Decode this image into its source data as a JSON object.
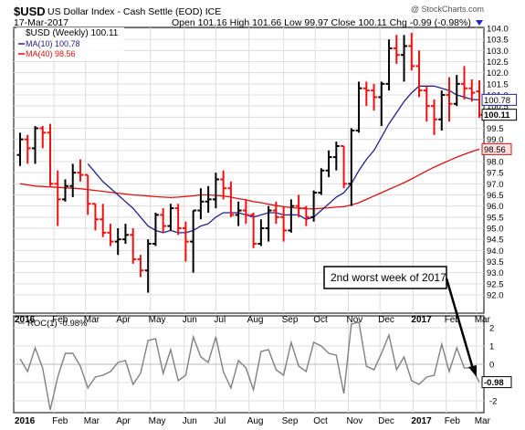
{
  "header": {
    "symbol": "$USD",
    "name": "US Dollar Index - Cash Settle (EOD) ICE",
    "watermark": "@ StockCharts.com",
    "date": "17-Mar-2017",
    "ohlc_text": "Open 101.16  High 101.66  Low 99.97  Close 100.11  Chg -0.99 (-0.98%)",
    "arrow_icon": "down-triangle-icon",
    "down_color": "#2222cc"
  },
  "legend": {
    "price": "$USD (Weekly) 100.11",
    "ma10": "MA(10) 100.78",
    "ma40": "MA(40) 98.56",
    "roc": "ROC(1) -0.98%"
  },
  "annotation": {
    "text": "2nd worst week of 2017"
  },
  "colors": {
    "up": "#000000",
    "down": "#ee1111",
    "ma10": "#22228a",
    "ma40": "#dd1111",
    "roc": "#808080"
  },
  "chart_data": [
    {
      "type": "ohlc",
      "title": "$USD (Weekly) 100.11",
      "ylim": [
        91.5,
        104.1
      ],
      "y_ticks": [
        92.0,
        92.5,
        93.0,
        93.5,
        94.0,
        94.5,
        95.0,
        95.5,
        96.0,
        96.5,
        97.0,
        97.5,
        98.0,
        98.5,
        99.0,
        99.5,
        100.0,
        100.5,
        101.0,
        101.5,
        102.0,
        102.5,
        103.0,
        103.5,
        104.0
      ],
      "x_labels": [
        {
          "label": "2016",
          "week": 0
        },
        {
          "label": "Feb",
          "week": 4.5
        },
        {
          "label": "Mar",
          "week": 8.7
        },
        {
          "label": "Apr",
          "week": 13
        },
        {
          "label": "May",
          "week": 17.3
        },
        {
          "label": "Jun",
          "week": 21.8
        },
        {
          "label": "Jul",
          "week": 26
        },
        {
          "label": "Aug",
          "week": 30.4
        },
        {
          "label": "Sep",
          "week": 35
        },
        {
          "label": "Oct",
          "week": 39.2
        },
        {
          "label": "Nov",
          "week": 43.6
        },
        {
          "label": "Dec",
          "week": 47.8
        },
        {
          "label": "2017",
          "week": 52.2
        },
        {
          "label": "Feb",
          "week": 56.6
        },
        {
          "label": "Mar",
          "week": 60.6
        }
      ],
      "last_labels": [
        {
          "text": "100.78",
          "value": 100.78,
          "bg": "#ffffff",
          "border": "#22228a"
        },
        {
          "text": "100.11",
          "value": 100.11,
          "bg": "#ffffff",
          "border": "#000000"
        },
        {
          "text": "98.56",
          "value": 98.56,
          "bg": "#ffe0e0",
          "border": "#dd1111"
        }
      ],
      "ohlc": [
        [
          98.3,
          99.3,
          97.8,
          99.0
        ],
        [
          99.0,
          99.2,
          97.9,
          98.6
        ],
        [
          98.6,
          99.6,
          97.9,
          99.5
        ],
        [
          99.5,
          99.6,
          98.6,
          99.3
        ],
        [
          99.3,
          99.7,
          96.9,
          97.0
        ],
        [
          97.0,
          97.6,
          95.1,
          96.3
        ],
        [
          96.3,
          97.2,
          96.2,
          96.9
        ],
        [
          96.9,
          97.9,
          96.4,
          97.5
        ],
        [
          97.5,
          98.1,
          97.1,
          97.4
        ],
        [
          97.4,
          97.4,
          95.6,
          96.1
        ],
        [
          96.1,
          96.1,
          94.9,
          95.4
        ],
        [
          95.4,
          96.1,
          94.6,
          94.8
        ],
        [
          94.8,
          95.2,
          94.2,
          94.4
        ],
        [
          94.4,
          95.0,
          93.8,
          94.5
        ],
        [
          94.5,
          95.2,
          94.3,
          94.7
        ],
        [
          94.7,
          95.0,
          93.4,
          93.6
        ],
        [
          93.6,
          93.8,
          92.8,
          93.1
        ],
        [
          93.1,
          94.5,
          92.1,
          94.3
        ],
        [
          94.3,
          95.7,
          94.2,
          95.6
        ],
        [
          95.6,
          95.9,
          94.8,
          95.1
        ],
        [
          95.1,
          96.1,
          94.9,
          95.9
        ],
        [
          95.9,
          96.1,
          94.7,
          95.0
        ],
        [
          95.0,
          95.3,
          93.5,
          94.4
        ],
        [
          94.4,
          95.8,
          93.0,
          95.8
        ],
        [
          95.8,
          96.8,
          95.4,
          96.2
        ],
        [
          96.2,
          96.9,
          95.7,
          96.3
        ],
        [
          96.3,
          97.5,
          95.9,
          97.2
        ],
        [
          97.2,
          97.6,
          96.3,
          96.8
        ],
        [
          96.8,
          97.1,
          95.5,
          95.6
        ],
        [
          95.6,
          96.2,
          95.1,
          95.8
        ],
        [
          95.8,
          96.3,
          95.2,
          95.6
        ],
        [
          95.6,
          95.7,
          94.1,
          94.3
        ],
        [
          94.3,
          95.4,
          94.2,
          95.0
        ],
        [
          95.0,
          96.0,
          94.4,
          95.8
        ],
        [
          95.8,
          96.2,
          95.2,
          95.5
        ],
        [
          95.5,
          96.0,
          94.4,
          94.9
        ],
        [
          94.9,
          96.3,
          94.8,
          96.0
        ],
        [
          96.0,
          96.5,
          95.5,
          95.9
        ],
        [
          95.9,
          96.0,
          95.1,
          95.5
        ],
        [
          95.5,
          96.7,
          95.3,
          96.6
        ],
        [
          96.6,
          97.7,
          96.5,
          97.6
        ],
        [
          97.6,
          98.5,
          97.3,
          98.2
        ],
        [
          98.2,
          98.9,
          97.6,
          98.7
        ],
        [
          98.7,
          98.7,
          96.8,
          97.0
        ],
        [
          97.0,
          99.5,
          96.0,
          99.4
        ],
        [
          99.4,
          101.6,
          99.3,
          101.3
        ],
        [
          101.3,
          101.6,
          100.5,
          101.2
        ],
        [
          101.2,
          101.5,
          100.3,
          100.9
        ],
        [
          100.9,
          101.6,
          99.6,
          101.5
        ],
        [
          101.5,
          103.5,
          101.2,
          103.1
        ],
        [
          103.1,
          103.7,
          102.4,
          102.8
        ],
        [
          102.8,
          103.7,
          101.6,
          103.2
        ],
        [
          103.2,
          103.8,
          102.1,
          102.3
        ],
        [
          102.3,
          103.0,
          100.9,
          101.2
        ],
        [
          101.2,
          101.4,
          99.8,
          100.5
        ],
        [
          100.5,
          100.8,
          99.2,
          99.9
        ],
        [
          99.9,
          101.2,
          99.4,
          101.0
        ],
        [
          101.0,
          101.8,
          99.8,
          100.6
        ],
        [
          100.6,
          101.9,
          100.5,
          101.5
        ],
        [
          101.5,
          102.3,
          100.8,
          101.3
        ],
        [
          101.3,
          101.7,
          100.7,
          101.1
        ],
        [
          101.16,
          101.66,
          99.97,
          100.11
        ]
      ],
      "series": [
        {
          "name": "MA(10) 100.78",
          "values": [
            null,
            null,
            null,
            null,
            null,
            null,
            null,
            null,
            null,
            97.9,
            97.5,
            97.1,
            96.8,
            96.5,
            96.2,
            95.9,
            95.5,
            95.1,
            94.9,
            94.8,
            94.9,
            94.8,
            94.8,
            94.9,
            95.1,
            95.2,
            95.5,
            95.7,
            95.7,
            95.7,
            95.6,
            95.5,
            95.6,
            95.7,
            95.7,
            95.6,
            95.6,
            95.6,
            95.4,
            95.5,
            95.8,
            96.1,
            96.4,
            96.6,
            97.0,
            97.6,
            98.1,
            98.5,
            99.1,
            99.7,
            100.2,
            100.7,
            101.1,
            101.4,
            101.4,
            101.4,
            101.3,
            101.2,
            101.0,
            100.9,
            100.8,
            100.78
          ]
        },
        {
          "name": "MA(40) 98.56",
          "values": [
            97.0,
            96.95,
            96.9,
            96.88,
            96.86,
            96.84,
            96.82,
            96.8,
            96.78,
            96.74,
            96.7,
            96.66,
            96.62,
            96.58,
            96.54,
            96.5,
            96.48,
            96.45,
            96.42,
            96.4,
            96.38,
            96.4,
            96.43,
            96.46,
            96.5,
            96.5,
            96.48,
            96.45,
            96.4,
            96.33,
            96.28,
            96.2,
            96.15,
            96.08,
            96.02,
            95.97,
            95.93,
            95.9,
            95.88,
            95.87,
            95.9,
            95.92,
            95.95,
            95.97,
            96.05,
            96.15,
            96.3,
            96.45,
            96.6,
            96.75,
            96.9,
            97.05,
            97.22,
            97.4,
            97.58,
            97.75,
            97.9,
            98.05,
            98.2,
            98.33,
            98.45,
            98.56
          ]
        }
      ]
    },
    {
      "type": "line",
      "title": "ROC(1) -0.98%",
      "ylim": [
        -3,
        3
      ],
      "y_ticks": [
        -2,
        -1,
        0,
        1,
        2
      ],
      "last_labels": [
        {
          "text": "-0.98",
          "value": -0.98,
          "bg": "#ffffff",
          "border": "#000000"
        }
      ],
      "series": [
        {
          "name": "ROC(1) -0.98%",
          "values": [
            0.3,
            -0.4,
            0.9,
            -0.2,
            -2.5,
            -0.7,
            0.6,
            0.6,
            -0.1,
            -1.3,
            -0.7,
            -0.6,
            -0.4,
            0.1,
            0.2,
            -1.1,
            -0.5,
            1.3,
            1.4,
            -0.5,
            0.8,
            -0.9,
            -0.6,
            1.5,
            0.4,
            0.1,
            1.5,
            -0.4,
            -1.3,
            0.2,
            -0.2,
            -1.4,
            0.7,
            0.8,
            -0.3,
            -0.6,
            1.2,
            -0.1,
            -0.4,
            1.2,
            1.0,
            0.6,
            0.5,
            -1.6,
            2.2,
            2.3,
            -0.1,
            -0.3,
            0.6,
            1.6,
            -0.3,
            0.4,
            -0.9,
            -1.1,
            -0.7,
            -0.6,
            1.1,
            -0.4,
            0.9,
            -0.2,
            -0.2,
            -0.98
          ]
        }
      ]
    }
  ]
}
